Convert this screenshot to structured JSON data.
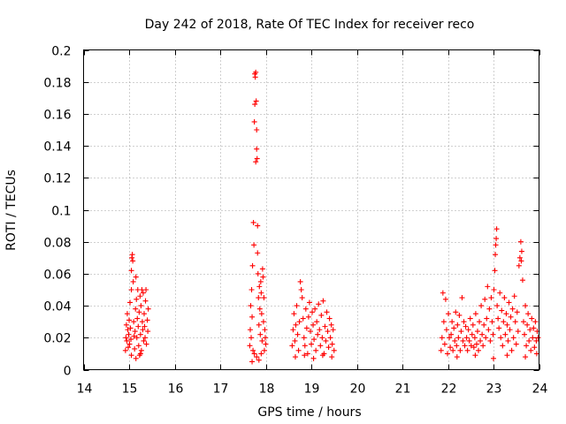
{
  "chart_data": {
    "type": "scatter",
    "title": "Day 242 of 2018, Rate Of TEC Index for receiver reco",
    "xlabel": "GPS time / hours",
    "ylabel": "ROTI / TECUs",
    "xlim": [
      14,
      24
    ],
    "ylim": [
      0,
      0.2
    ],
    "xticks": [
      14,
      15,
      16,
      17,
      18,
      19,
      20,
      21,
      22,
      23,
      24
    ],
    "xtick_labels": [
      "14",
      "15",
      "16",
      "17",
      "18",
      "19",
      "20",
      "21",
      "22",
      "23",
      "24"
    ],
    "yticks": [
      0,
      0.02,
      0.04,
      0.06,
      0.08,
      0.1,
      0.12,
      0.14,
      0.16,
      0.18,
      0.2
    ],
    "ytick_labels": [
      "0",
      "0.02",
      "0.04",
      "0.06",
      "0.08",
      "0.1",
      "0.12",
      "0.14",
      "0.16",
      "0.18",
      "0.2"
    ],
    "grid": true,
    "marker": "+",
    "color": "#ff0000",
    "series": [
      {
        "points": [
          [
            14.92,
            0.012
          ],
          [
            14.93,
            0.02
          ],
          [
            14.94,
            0.028
          ],
          [
            14.95,
            0.018
          ],
          [
            14.96,
            0.035
          ],
          [
            14.97,
            0.025
          ],
          [
            14.98,
            0.014
          ],
          [
            14.99,
            0.022
          ],
          [
            15.0,
            0.031
          ],
          [
            15.01,
            0.016
          ],
          [
            15.02,
            0.042
          ],
          [
            15.03,
            0.026
          ],
          [
            15.04,
            0.019
          ],
          [
            15.05,
            0.05
          ],
          [
            15.05,
            0.062
          ],
          [
            15.06,
            0.07
          ],
          [
            15.07,
            0.072
          ],
          [
            15.08,
            0.068
          ],
          [
            15.09,
            0.055
          ],
          [
            15.1,
            0.03
          ],
          [
            15.11,
            0.021
          ],
          [
            15.12,
            0.013
          ],
          [
            15.13,
            0.024
          ],
          [
            15.14,
            0.038
          ],
          [
            15.15,
            0.058
          ],
          [
            15.16,
            0.044
          ],
          [
            15.17,
            0.02
          ],
          [
            15.18,
            0.032
          ],
          [
            15.19,
            0.05
          ],
          [
            15.2,
            0.027
          ],
          [
            15.21,
            0.015
          ],
          [
            15.22,
            0.036
          ],
          [
            15.23,
            0.009
          ],
          [
            15.24,
            0.046
          ],
          [
            15.25,
            0.022
          ],
          [
            15.26,
            0.04
          ],
          [
            15.27,
            0.012
          ],
          [
            15.28,
            0.05
          ],
          [
            15.29,
            0.03
          ],
          [
            15.3,
            0.025
          ],
          [
            15.31,
            0.048
          ],
          [
            15.32,
            0.018
          ],
          [
            15.33,
            0.035
          ],
          [
            15.34,
            0.027
          ],
          [
            15.35,
            0.02
          ],
          [
            15.36,
            0.043
          ],
          [
            15.37,
            0.05
          ],
          [
            15.38,
            0.016
          ],
          [
            15.4,
            0.031
          ],
          [
            15.41,
            0.024
          ],
          [
            15.42,
            0.038
          ],
          [
            15.15,
            0.007
          ],
          [
            15.25,
            0.01
          ],
          [
            15.05,
            0.009
          ]
        ]
      },
      {
        "points": [
          [
            17.65,
            0.015
          ],
          [
            17.66,
            0.025
          ],
          [
            17.67,
            0.04
          ],
          [
            17.68,
            0.02
          ],
          [
            17.69,
            0.05
          ],
          [
            17.7,
            0.033
          ],
          [
            17.71,
            0.065
          ],
          [
            17.72,
            0.012
          ],
          [
            17.73,
            0.092
          ],
          [
            17.74,
            0.078
          ],
          [
            17.75,
            0.155
          ],
          [
            17.76,
            0.166
          ],
          [
            17.76,
            0.185
          ],
          [
            17.77,
            0.183
          ],
          [
            17.78,
            0.186
          ],
          [
            17.78,
            0.13
          ],
          [
            17.79,
            0.168
          ],
          [
            17.8,
            0.138
          ],
          [
            17.8,
            0.15
          ],
          [
            17.81,
            0.132
          ],
          [
            17.82,
            0.09
          ],
          [
            17.82,
            0.073
          ],
          [
            17.83,
            0.06
          ],
          [
            17.84,
            0.045
          ],
          [
            17.85,
            0.028
          ],
          [
            17.86,
            0.052
          ],
          [
            17.87,
            0.038
          ],
          [
            17.88,
            0.022
          ],
          [
            17.89,
            0.055
          ],
          [
            17.9,
            0.048
          ],
          [
            17.91,
            0.035
          ],
          [
            17.92,
            0.018
          ],
          [
            17.93,
            0.063
          ],
          [
            17.94,
            0.058
          ],
          [
            17.95,
            0.03
          ],
          [
            17.96,
            0.045
          ],
          [
            17.97,
            0.012
          ],
          [
            17.98,
            0.025
          ],
          [
            17.99,
            0.02
          ],
          [
            18.0,
            0.016
          ],
          [
            17.75,
            0.01
          ],
          [
            17.8,
            0.008
          ],
          [
            17.85,
            0.006
          ],
          [
            17.9,
            0.01
          ],
          [
            17.7,
            0.005
          ]
        ]
      },
      {
        "points": [
          [
            18.58,
            0.015
          ],
          [
            18.6,
            0.025
          ],
          [
            18.62,
            0.035
          ],
          [
            18.64,
            0.018
          ],
          [
            18.66,
            0.028
          ],
          [
            18.68,
            0.04
          ],
          [
            18.7,
            0.022
          ],
          [
            18.72,
            0.012
          ],
          [
            18.74,
            0.03
          ],
          [
            18.76,
            0.055
          ],
          [
            18.78,
            0.05
          ],
          [
            18.8,
            0.045
          ],
          [
            18.82,
            0.032
          ],
          [
            18.84,
            0.02
          ],
          [
            18.86,
            0.015
          ],
          [
            18.88,
            0.038
          ],
          [
            18.9,
            0.026
          ],
          [
            18.92,
            0.01
          ],
          [
            18.94,
            0.033
          ],
          [
            18.96,
            0.042
          ],
          [
            18.98,
            0.024
          ],
          [
            19.0,
            0.016
          ],
          [
            19.02,
            0.036
          ],
          [
            19.04,
            0.028
          ],
          [
            19.06,
            0.019
          ],
          [
            19.08,
            0.038
          ],
          [
            19.1,
            0.012
          ],
          [
            19.12,
            0.03
          ],
          [
            19.14,
            0.022
          ],
          [
            19.16,
            0.041
          ],
          [
            19.18,
            0.025
          ],
          [
            19.2,
            0.015
          ],
          [
            19.22,
            0.034
          ],
          [
            19.24,
            0.02
          ],
          [
            19.26,
            0.043
          ],
          [
            19.28,
            0.01
          ],
          [
            19.3,
            0.027
          ],
          [
            19.32,
            0.018
          ],
          [
            19.34,
            0.036
          ],
          [
            19.36,
            0.024
          ],
          [
            19.38,
            0.014
          ],
          [
            19.4,
            0.032
          ],
          [
            19.42,
            0.02
          ],
          [
            19.44,
            0.028
          ],
          [
            19.46,
            0.016
          ],
          [
            19.48,
            0.025
          ],
          [
            19.5,
            0.012
          ],
          [
            18.65,
            0.008
          ],
          [
            18.85,
            0.009
          ],
          [
            19.05,
            0.007
          ],
          [
            19.25,
            0.009
          ],
          [
            19.45,
            0.008
          ]
        ]
      },
      {
        "points": [
          [
            21.85,
            0.012
          ],
          [
            21.87,
            0.02
          ],
          [
            21.89,
            0.048
          ],
          [
            21.91,
            0.03
          ],
          [
            21.93,
            0.016
          ],
          [
            21.95,
            0.044
          ],
          [
            21.97,
            0.025
          ],
          [
            21.99,
            0.01
          ],
          [
            22.01,
            0.035
          ],
          [
            22.03,
            0.02
          ],
          [
            22.05,
            0.014
          ],
          [
            22.07,
            0.022
          ],
          [
            22.09,
            0.03
          ],
          [
            22.11,
            0.012
          ],
          [
            22.13,
            0.026
          ],
          [
            22.15,
            0.018
          ],
          [
            22.17,
            0.036
          ],
          [
            22.19,
            0.015
          ],
          [
            22.21,
            0.028
          ],
          [
            22.23,
            0.02
          ],
          [
            22.25,
            0.034
          ],
          [
            22.27,
            0.012
          ],
          [
            22.29,
            0.024
          ],
          [
            22.31,
            0.045
          ],
          [
            22.33,
            0.018
          ],
          [
            22.35,
            0.03
          ],
          [
            22.37,
            0.015
          ],
          [
            22.39,
            0.027
          ],
          [
            22.41,
            0.02
          ],
          [
            22.43,
            0.012
          ],
          [
            22.45,
            0.025
          ],
          [
            22.47,
            0.018
          ],
          [
            22.49,
            0.032
          ],
          [
            22.51,
            0.015
          ],
          [
            22.53,
            0.022
          ],
          [
            22.55,
            0.028
          ],
          [
            22.57,
            0.014
          ],
          [
            22.59,
            0.02
          ],
          [
            22.61,
            0.035
          ],
          [
            22.63,
            0.016
          ],
          [
            22.65,
            0.024
          ],
          [
            22.67,
            0.012
          ],
          [
            22.69,
            0.03
          ],
          [
            22.71,
            0.018
          ],
          [
            22.73,
            0.04
          ],
          [
            22.75,
            0.022
          ],
          [
            22.77,
            0.015
          ],
          [
            22.79,
            0.028
          ],
          [
            22.81,
            0.044
          ],
          [
            22.83,
            0.02
          ],
          [
            22.85,
            0.032
          ],
          [
            22.87,
            0.052
          ],
          [
            22.89,
            0.025
          ],
          [
            22.91,
            0.038
          ],
          [
            22.93,
            0.018
          ],
          [
            22.95,
            0.045
          ],
          [
            22.97,
            0.03
          ],
          [
            22.99,
            0.022
          ],
          [
            23.01,
            0.05
          ],
          [
            23.03,
            0.062
          ],
          [
            23.04,
            0.072
          ],
          [
            23.05,
            0.078
          ],
          [
            23.06,
            0.082
          ],
          [
            23.07,
            0.088
          ],
          [
            23.08,
            0.04
          ],
          [
            23.1,
            0.032
          ],
          [
            23.12,
            0.026
          ],
          [
            23.14,
            0.048
          ],
          [
            23.16,
            0.02
          ],
          [
            23.18,
            0.037
          ],
          [
            23.2,
            0.015
          ],
          [
            23.22,
            0.03
          ],
          [
            23.24,
            0.045
          ],
          [
            23.26,
            0.022
          ],
          [
            23.28,
            0.035
          ],
          [
            23.3,
            0.028
          ],
          [
            23.32,
            0.018
          ],
          [
            23.34,
            0.042
          ],
          [
            23.36,
            0.025
          ],
          [
            23.38,
            0.033
          ],
          [
            23.4,
            0.012
          ],
          [
            23.42,
            0.038
          ],
          [
            23.44,
            0.02
          ],
          [
            23.46,
            0.046
          ],
          [
            23.48,
            0.03
          ],
          [
            23.5,
            0.016
          ],
          [
            23.52,
            0.036
          ],
          [
            23.54,
            0.024
          ],
          [
            23.56,
            0.065
          ],
          [
            23.58,
            0.07
          ],
          [
            23.6,
            0.08
          ],
          [
            23.61,
            0.068
          ],
          [
            23.62,
            0.074
          ],
          [
            23.64,
            0.056
          ],
          [
            23.66,
            0.03
          ],
          [
            23.68,
            0.022
          ],
          [
            23.7,
            0.04
          ],
          [
            23.72,
            0.015
          ],
          [
            23.74,
            0.028
          ],
          [
            23.76,
            0.035
          ],
          [
            23.78,
            0.018
          ],
          [
            23.8,
            0.025
          ],
          [
            23.82,
            0.012
          ],
          [
            23.84,
            0.032
          ],
          [
            23.86,
            0.02
          ],
          [
            23.88,
            0.026
          ],
          [
            23.9,
            0.014
          ],
          [
            23.92,
            0.03
          ],
          [
            23.94,
            0.018
          ],
          [
            23.96,
            0.024
          ],
          [
            23.98,
            0.02
          ],
          [
            22.2,
            0.008
          ],
          [
            22.6,
            0.009
          ],
          [
            23.0,
            0.007
          ],
          [
            23.3,
            0.009
          ],
          [
            23.7,
            0.008
          ],
          [
            23.95,
            0.01
          ]
        ]
      }
    ]
  }
}
